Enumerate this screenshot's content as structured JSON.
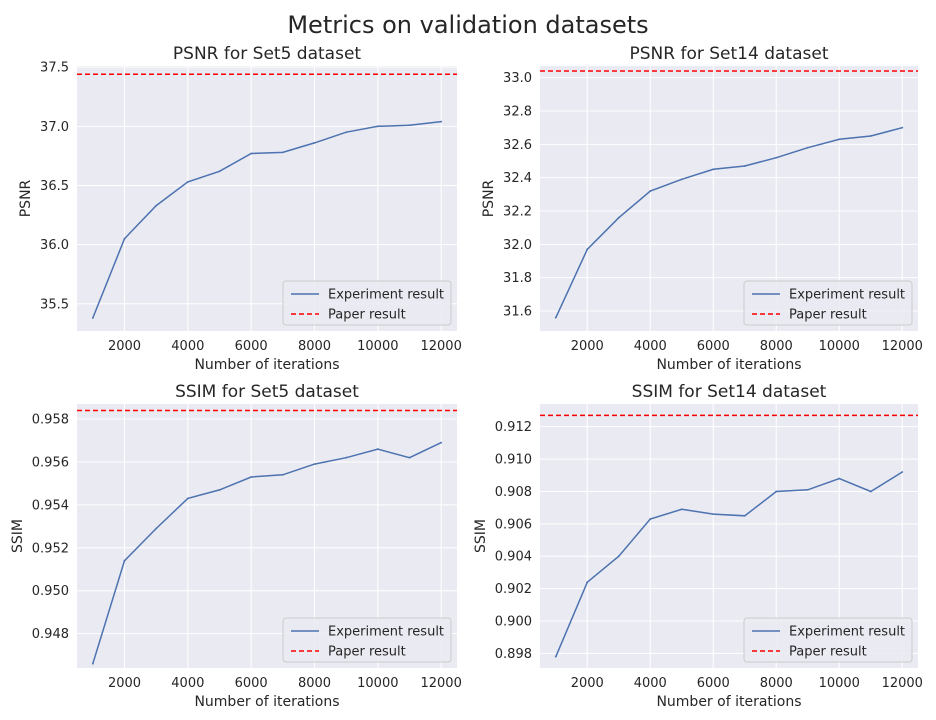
{
  "figure": {
    "suptitle": "Metrics on validation datasets"
  },
  "chart_data": [
    {
      "type": "line",
      "title": "PSNR for Set5 dataset",
      "xlabel": "Number of iterations",
      "ylabel": "PSNR",
      "xlim": [
        500,
        12500
      ],
      "ylim": [
        35.27,
        37.51
      ],
      "xticks": [
        2000,
        4000,
        6000,
        8000,
        10000,
        12000
      ],
      "yticks": [
        35.5,
        36.0,
        36.5,
        37.0,
        37.5
      ],
      "ytick_labels": [
        "35.5",
        "36.0",
        "36.5",
        "37.0",
        "37.5"
      ],
      "grid": true,
      "legend_position": "lower-right",
      "series": [
        {
          "name": "Experiment result",
          "style": "solid",
          "color": "#4c72b0",
          "x": [
            1000,
            2000,
            3000,
            4000,
            5000,
            6000,
            7000,
            8000,
            9000,
            10000,
            11000,
            12000
          ],
          "y": [
            35.38,
            36.05,
            36.33,
            36.53,
            36.62,
            36.77,
            36.78,
            36.86,
            36.95,
            37.0,
            37.01,
            37.04
          ]
        },
        {
          "name": "Paper result",
          "style": "dashed",
          "color": "#ff0000",
          "hline": 37.44
        }
      ]
    },
    {
      "type": "line",
      "title": "PSNR for Set14 dataset",
      "xlabel": "Number of iterations",
      "ylabel": "PSNR",
      "xlim": [
        500,
        12500
      ],
      "ylim": [
        31.48,
        33.07
      ],
      "xticks": [
        2000,
        4000,
        6000,
        8000,
        10000,
        12000
      ],
      "yticks": [
        31.6,
        31.8,
        32.0,
        32.2,
        32.4,
        32.6,
        32.8,
        33.0
      ],
      "ytick_labels": [
        "31.6",
        "31.8",
        "32.0",
        "32.2",
        "32.4",
        "32.6",
        "32.8",
        "33.0"
      ],
      "grid": true,
      "legend_position": "lower-right",
      "series": [
        {
          "name": "Experiment result",
          "style": "solid",
          "color": "#4c72b0",
          "x": [
            1000,
            2000,
            3000,
            4000,
            5000,
            6000,
            7000,
            8000,
            9000,
            10000,
            11000,
            12000
          ],
          "y": [
            31.56,
            31.97,
            32.16,
            32.32,
            32.39,
            32.45,
            32.47,
            32.52,
            32.58,
            32.63,
            32.65,
            32.7
          ]
        },
        {
          "name": "Paper result",
          "style": "dashed",
          "color": "#ff0000",
          "hline": 33.04
        }
      ]
    },
    {
      "type": "line",
      "title": "SSIM for Set5 dataset",
      "xlabel": "Number of iterations",
      "ylabel": "SSIM",
      "xlim": [
        500,
        12500
      ],
      "ylim": [
        0.9464,
        0.9587
      ],
      "xticks": [
        2000,
        4000,
        6000,
        8000,
        10000,
        12000
      ],
      "yticks": [
        0.948,
        0.95,
        0.952,
        0.954,
        0.956,
        0.958
      ],
      "ytick_labels": [
        "0.948",
        "0.950",
        "0.952",
        "0.954",
        "0.956",
        "0.958"
      ],
      "grid": true,
      "legend_position": "lower-right",
      "series": [
        {
          "name": "Experiment result",
          "style": "solid",
          "color": "#4c72b0",
          "x": [
            1000,
            2000,
            3000,
            4000,
            5000,
            6000,
            7000,
            8000,
            9000,
            10000,
            11000,
            12000
          ],
          "y": [
            0.9466,
            0.9514,
            0.9529,
            0.9543,
            0.9547,
            0.9553,
            0.9554,
            0.9559,
            0.9562,
            0.9566,
            0.9562,
            0.9569
          ]
        },
        {
          "name": "Paper result",
          "style": "dashed",
          "color": "#ff0000",
          "hline": 0.9584
        }
      ]
    },
    {
      "type": "line",
      "title": "SSIM for Set14 dataset",
      "xlabel": "Number of iterations",
      "ylabel": "SSIM",
      "xlim": [
        500,
        12500
      ],
      "ylim": [
        0.8971,
        0.9134
      ],
      "xticks": [
        2000,
        4000,
        6000,
        8000,
        10000,
        12000
      ],
      "yticks": [
        0.898,
        0.9,
        0.902,
        0.904,
        0.906,
        0.908,
        0.91,
        0.912
      ],
      "ytick_labels": [
        "0.898",
        "0.900",
        "0.902",
        "0.904",
        "0.906",
        "0.908",
        "0.910",
        "0.912"
      ],
      "grid": true,
      "legend_position": "lower-right",
      "series": [
        {
          "name": "Experiment result",
          "style": "solid",
          "color": "#4c72b0",
          "x": [
            1000,
            2000,
            3000,
            4000,
            5000,
            6000,
            7000,
            8000,
            9000,
            10000,
            11000,
            12000
          ],
          "y": [
            0.8978,
            0.9024,
            0.904,
            0.9063,
            0.9069,
            0.9066,
            0.9065,
            0.908,
            0.9081,
            0.9088,
            0.908,
            0.9092
          ]
        },
        {
          "name": "Paper result",
          "style": "dashed",
          "color": "#ff0000",
          "hline": 0.9127
        }
      ]
    }
  ]
}
